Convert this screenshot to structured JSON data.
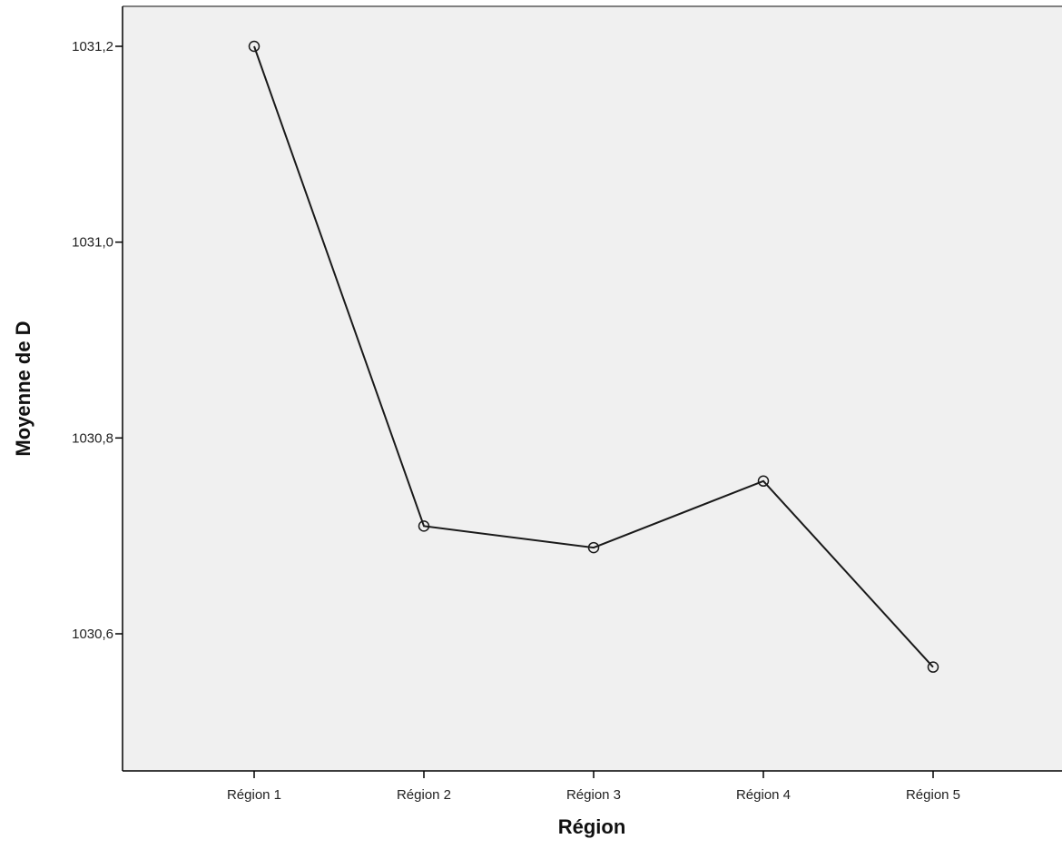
{
  "chart_data": {
    "type": "line",
    "title": "",
    "xlabel": "Région",
    "ylabel": "Moyenne de D",
    "categories": [
      "Région 1",
      "Région 2",
      "Région 3",
      "Région 4",
      "Région 5"
    ],
    "values": [
      1031.2,
      1030.71,
      1030.688,
      1030.756,
      1030.566
    ],
    "ylim": [
      1030.5,
      1031.24
    ],
    "yticks": [
      1030.6,
      1030.8,
      1031.0,
      1031.2
    ],
    "ytick_labels": [
      "1030,6",
      "1030,8",
      "1031,0",
      "1031,2"
    ],
    "grid": false,
    "legend": "none",
    "marker": "open-circle",
    "colors": {
      "plot_background": "#f0f0f0",
      "line": "#1a1a1a",
      "axis": "#000000",
      "frame": "#808080"
    }
  }
}
